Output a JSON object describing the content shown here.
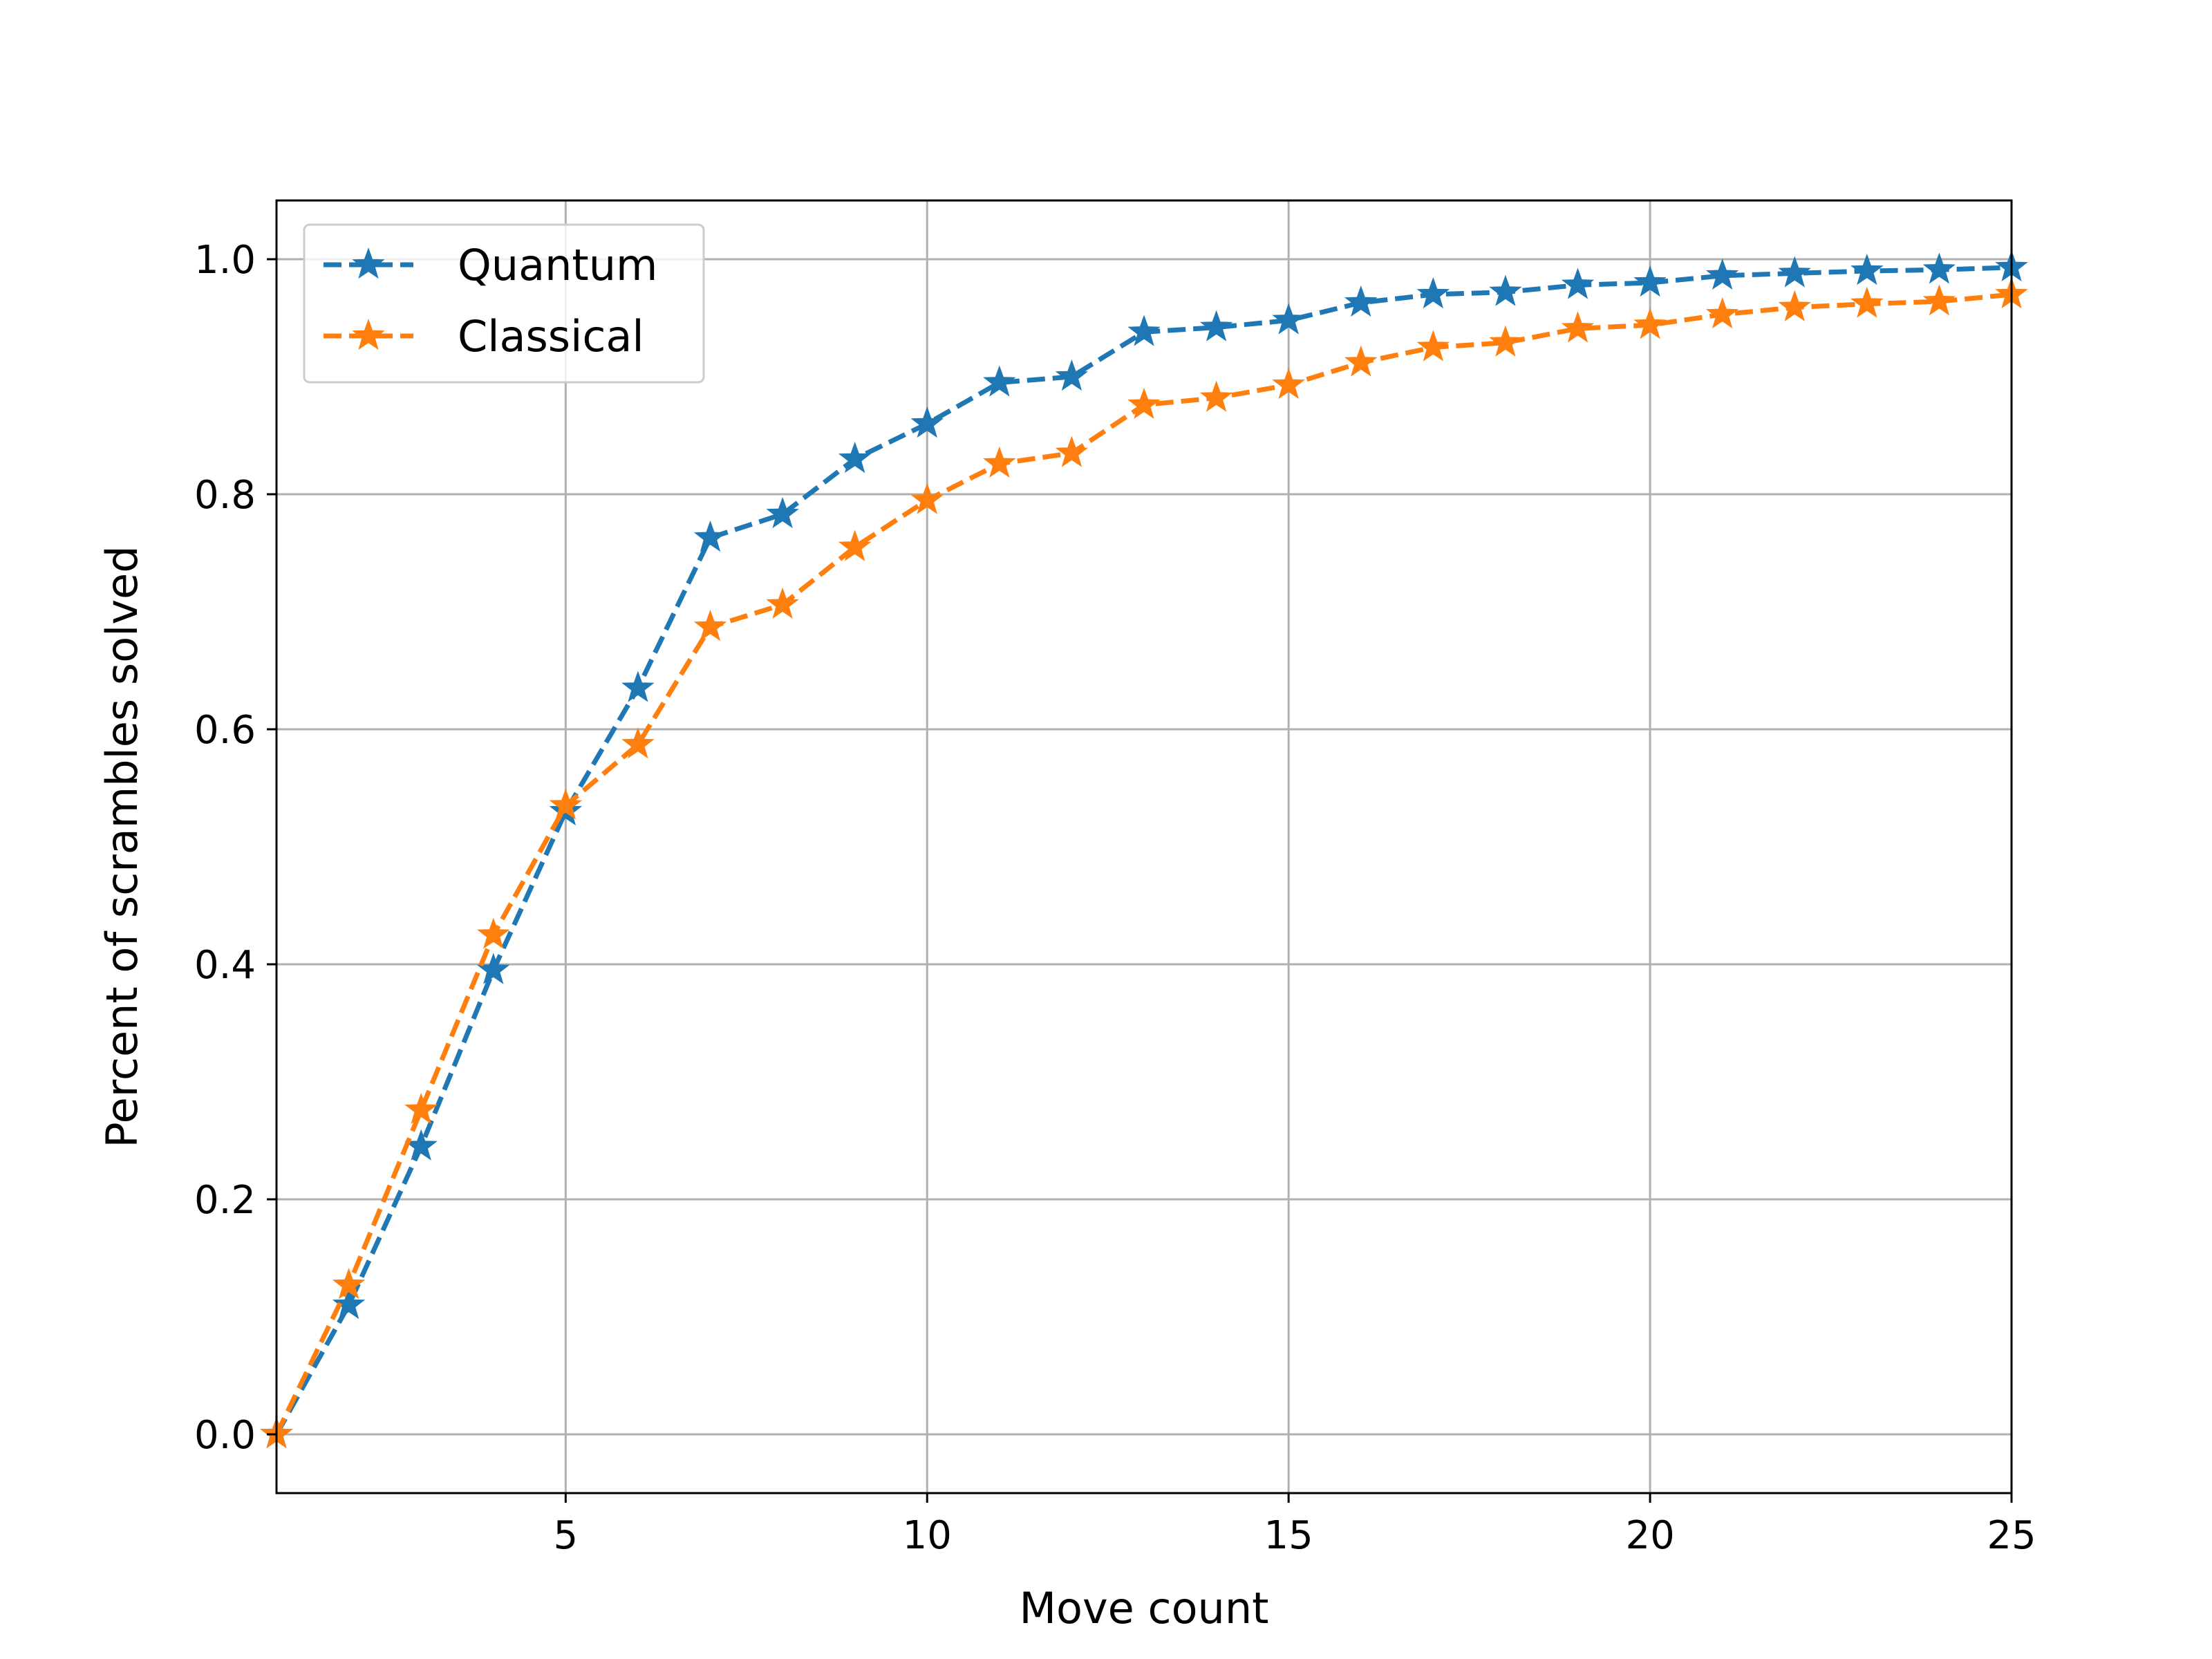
{
  "chart_data": {
    "type": "line",
    "title": "",
    "xlabel": "Move count",
    "ylabel": "Percent of scrambles solved",
    "xlim": [
      1,
      25
    ],
    "ylim": [
      -0.05,
      1.05
    ],
    "xticks": [
      5,
      10,
      15,
      20,
      25
    ],
    "yticks": [
      0.0,
      0.2,
      0.4,
      0.6,
      0.8,
      1.0
    ],
    "xtick_labels": [
      "5",
      "10",
      "15",
      "20",
      "25"
    ],
    "ytick_labels": [
      "0.0",
      "0.2",
      "0.4",
      "0.6",
      "0.8",
      "1.0"
    ],
    "grid": true,
    "legend_position": "top-left",
    "marker": "star",
    "line_style": "dashed",
    "x": [
      1,
      2,
      3,
      4,
      5,
      6,
      7,
      8,
      9,
      10,
      11,
      12,
      13,
      14,
      15,
      16,
      17,
      18,
      19,
      20,
      21,
      22,
      23,
      24,
      25
    ],
    "series": [
      {
        "name": "Quantum",
        "color": "#1f77b4",
        "values": [
          0.0,
          0.11,
          0.245,
          0.395,
          0.53,
          0.635,
          0.763,
          0.783,
          0.83,
          0.86,
          0.895,
          0.9,
          0.938,
          0.942,
          0.948,
          0.963,
          0.97,
          0.972,
          0.978,
          0.98,
          0.986,
          0.988,
          0.99,
          0.991,
          0.993
        ]
      },
      {
        "name": "Classical",
        "color": "#ff7f0e",
        "values": [
          0.0,
          0.127,
          0.276,
          0.425,
          0.535,
          0.587,
          0.687,
          0.706,
          0.755,
          0.795,
          0.826,
          0.835,
          0.876,
          0.882,
          0.893,
          0.912,
          0.925,
          0.929,
          0.941,
          0.944,
          0.953,
          0.959,
          0.962,
          0.964,
          0.97
        ]
      }
    ]
  }
}
